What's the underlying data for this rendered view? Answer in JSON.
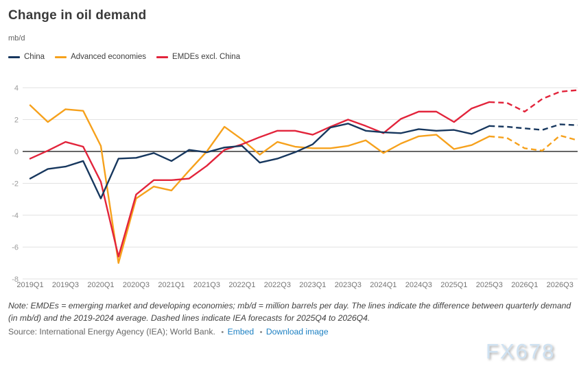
{
  "page": {
    "title": "Change in oil demand",
    "unit": "mb/d",
    "note": "Note: EMDEs = emerging market and developing economies; mb/d = million barrels per day. The lines indicate the difference between quarterly demand (in mb/d) and the 2019-2024 average. Dashed lines indicate IEA forecasts for 2025Q4 to 2026Q4.",
    "source": "Source: International Energy Agency (IEA); World Bank.",
    "bullet": "•",
    "links": {
      "embed": "Embed",
      "download": "Download image"
    },
    "watermark": "FX678"
  },
  "chart_data": {
    "type": "line",
    "title": "Change in oil demand",
    "ylabel": "mb/d",
    "xlabel": "",
    "ylim": [
      -8,
      4
    ],
    "yticks": [
      4,
      2,
      0,
      -2,
      -4,
      -6,
      -8
    ],
    "grid": "horizontal",
    "legend_position": "top-left",
    "forecast_note": "Dashed segments are IEA forecasts for 2025Q4 to 2026Q4",
    "solid_until_index": 26,
    "x": [
      "2019Q1",
      "2019Q2",
      "2019Q3",
      "2019Q4",
      "2020Q1",
      "2020Q2",
      "2020Q3",
      "2020Q4",
      "2021Q1",
      "2021Q2",
      "2021Q3",
      "2021Q4",
      "2022Q1",
      "2022Q2",
      "2022Q3",
      "2022Q4",
      "2023Q1",
      "2023Q2",
      "2023Q3",
      "2023Q4",
      "2024Q1",
      "2024Q2",
      "2024Q3",
      "2024Q4",
      "2025Q1",
      "2025Q2",
      "2025Q3",
      "2025Q4",
      "2026Q1",
      "2026Q2",
      "2026Q3",
      "2026Q4"
    ],
    "x_tick_labels": [
      "2019Q1",
      "2019Q3",
      "2020Q1",
      "2020Q3",
      "2021Q1",
      "2021Q3",
      "2022Q1",
      "2022Q3",
      "2023Q1",
      "2023Q3",
      "2024Q1",
      "2024Q3",
      "2025Q1",
      "2025Q3",
      "2026Q1",
      "2026Q3"
    ],
    "series": [
      {
        "name": "China",
        "color": "#17375E",
        "values": [
          -1.7,
          -1.1,
          -0.95,
          -0.6,
          -2.95,
          -0.45,
          -0.4,
          -0.1,
          -0.6,
          0.1,
          -0.05,
          0.25,
          0.35,
          -0.7,
          -0.45,
          -0.05,
          0.45,
          1.5,
          1.75,
          1.3,
          1.2,
          1.15,
          1.4,
          1.3,
          1.35,
          1.1,
          1.6,
          1.55,
          1.45,
          1.35,
          1.7,
          1.65
        ]
      },
      {
        "name": "Advanced economies",
        "color": "#F6A11C",
        "values": [
          2.9,
          1.85,
          2.65,
          2.55,
          0.35,
          -7.0,
          -2.95,
          -2.2,
          -2.45,
          -1.2,
          0.0,
          1.55,
          0.75,
          -0.2,
          0.6,
          0.3,
          0.2,
          0.2,
          0.35,
          0.7,
          -0.1,
          0.5,
          0.95,
          1.05,
          0.15,
          0.4,
          0.95,
          0.85,
          0.2,
          0.05,
          1.0,
          0.7
        ]
      },
      {
        "name": "EMDEs excl. China",
        "color": "#E2243B",
        "values": [
          -0.45,
          0.05,
          0.6,
          0.3,
          -1.9,
          -6.6,
          -2.7,
          -1.8,
          -1.8,
          -1.7,
          -0.9,
          0.1,
          0.45,
          0.9,
          1.3,
          1.3,
          1.05,
          1.55,
          2.0,
          1.6,
          1.15,
          2.05,
          2.5,
          2.5,
          1.85,
          2.7,
          3.1,
          3.05,
          2.5,
          3.3,
          3.75,
          3.85
        ]
      }
    ]
  }
}
